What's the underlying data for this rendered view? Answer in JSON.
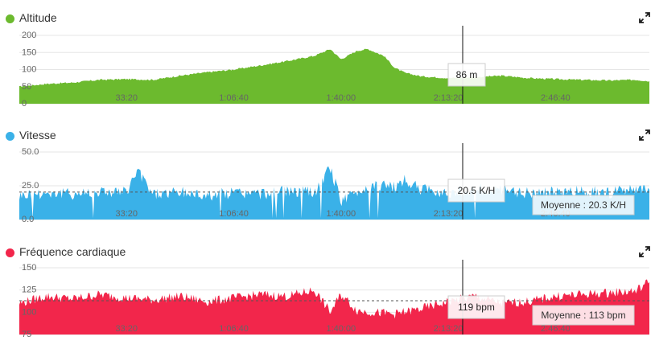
{
  "colors": {
    "altitude": "#6cba2e",
    "speed": "#3ab1e8",
    "heart": "#f2264b",
    "grid": "#e6e6e6",
    "cursor": "#111111"
  },
  "icons": {
    "expand": "expand-arrows-icon"
  },
  "charts": [
    {
      "id": "altitude",
      "title": "Altitude",
      "color_key": "altitude",
      "y_ticks": [
        "200",
        "150",
        "100",
        "50",
        "0"
      ],
      "y_tick_values": [
        200,
        150,
        100,
        50,
        0
      ],
      "ylim": [
        0,
        200
      ],
      "cursor_label": "86 m",
      "average_value": null,
      "average_label": "",
      "x_tick_labels": [
        "33:20",
        "1:06:40",
        "1:40:00",
        "2:13:20",
        "2:46:40"
      ]
    },
    {
      "id": "speed",
      "title": "Vitesse",
      "color_key": "speed",
      "y_ticks": [
        "50.0",
        "25.0",
        "0.0"
      ],
      "y_tick_values": [
        50,
        25,
        0
      ],
      "ylim": [
        0,
        50
      ],
      "cursor_label": "20.5 K/H",
      "average_value": 20.3,
      "average_label": "Moyenne : 20.3 K/H",
      "x_tick_labels": [
        "33:20",
        "1:06:40",
        "1:40:00",
        "2:13:20",
        "2:46:40"
      ]
    },
    {
      "id": "heart",
      "title": "Fréquence cardiaque",
      "color_key": "heart",
      "y_ticks": [
        "150",
        "125",
        "100",
        "75"
      ],
      "y_tick_values": [
        150,
        125,
        100,
        75
      ],
      "ylim": [
        75,
        150
      ],
      "cursor_label": "119 bpm",
      "average_value": 113,
      "average_label": "Moyenne : 113 bpm",
      "x_tick_labels": [
        "33:20",
        "1:06:40",
        "1:40:00",
        "2:13:20",
        "2:46:40"
      ]
    }
  ],
  "chart_data": [
    {
      "type": "area",
      "title": "Altitude",
      "xlabel": "",
      "ylabel": "",
      "ylim": [
        0,
        200
      ],
      "x_ticks_seconds": [
        2000,
        4000,
        6000,
        8000,
        10000
      ],
      "x_range_seconds": [
        0,
        11750
      ],
      "cursor_x_seconds": 8880,
      "cursor_value": 86,
      "series": [
        {
          "x": [
            0,
            500,
            1000,
            1500,
            2000,
            2500,
            3000,
            3500,
            4000,
            4500,
            5000,
            5500,
            5800,
            6000,
            6300,
            6500,
            6800,
            7000,
            7200,
            7500,
            8000,
            8500,
            9000,
            9500,
            10000,
            10500,
            11000,
            11500,
            11750
          ],
          "y": [
            50,
            58,
            62,
            70,
            72,
            70,
            82,
            92,
            100,
            112,
            125,
            140,
            160,
            130,
            155,
            160,
            140,
            105,
            90,
            80,
            75,
            78,
            82,
            75,
            72,
            70,
            68,
            70,
            66
          ]
        }
      ]
    },
    {
      "type": "area",
      "title": "Vitesse",
      "xlabel": "",
      "ylabel": "",
      "ylim": [
        0,
        50
      ],
      "x_ticks_seconds": [
        2000,
        4000,
        6000,
        8000,
        10000
      ],
      "x_range_seconds": [
        0,
        11750
      ],
      "cursor_x_seconds": 8880,
      "cursor_value": 20.5,
      "average": 20.3,
      "series": [
        {
          "x": [
            0,
            500,
            1000,
            1500,
            2000,
            2200,
            2500,
            3000,
            3500,
            4000,
            4500,
            5000,
            5500,
            5800,
            6000,
            6300,
            6600,
            7000,
            7200,
            7500,
            8000,
            8500,
            9000,
            9500,
            10000,
            10500,
            11000,
            11500,
            11750
          ],
          "y": [
            18,
            20,
            19,
            21,
            20,
            36,
            19,
            20,
            18,
            20,
            19,
            21,
            20,
            38,
            14,
            20,
            26,
            24,
            29,
            22,
            20,
            22,
            21,
            20,
            20,
            21,
            20,
            22,
            21
          ]
        }
      ]
    },
    {
      "type": "area",
      "title": "Fréquence cardiaque",
      "xlabel": "",
      "ylabel": "",
      "ylim": [
        75,
        150
      ],
      "x_ticks_seconds": [
        2000,
        4000,
        6000,
        8000,
        10000
      ],
      "x_range_seconds": [
        0,
        11750
      ],
      "cursor_x_seconds": 8880,
      "cursor_value": 119,
      "average": 113,
      "series": [
        {
          "x": [
            0,
            500,
            1000,
            1500,
            2000,
            2500,
            3000,
            3500,
            4000,
            4500,
            5000,
            5500,
            5800,
            6000,
            6300,
            6600,
            7000,
            7500,
            8000,
            8500,
            9000,
            9500,
            10000,
            10500,
            11000,
            11500,
            11750
          ],
          "y": [
            110,
            118,
            115,
            120,
            116,
            114,
            118,
            112,
            116,
            120,
            118,
            125,
            100,
            120,
            102,
            100,
            98,
            104,
            112,
            118,
            110,
            112,
            118,
            120,
            122,
            124,
            135
          ]
        }
      ]
    }
  ]
}
